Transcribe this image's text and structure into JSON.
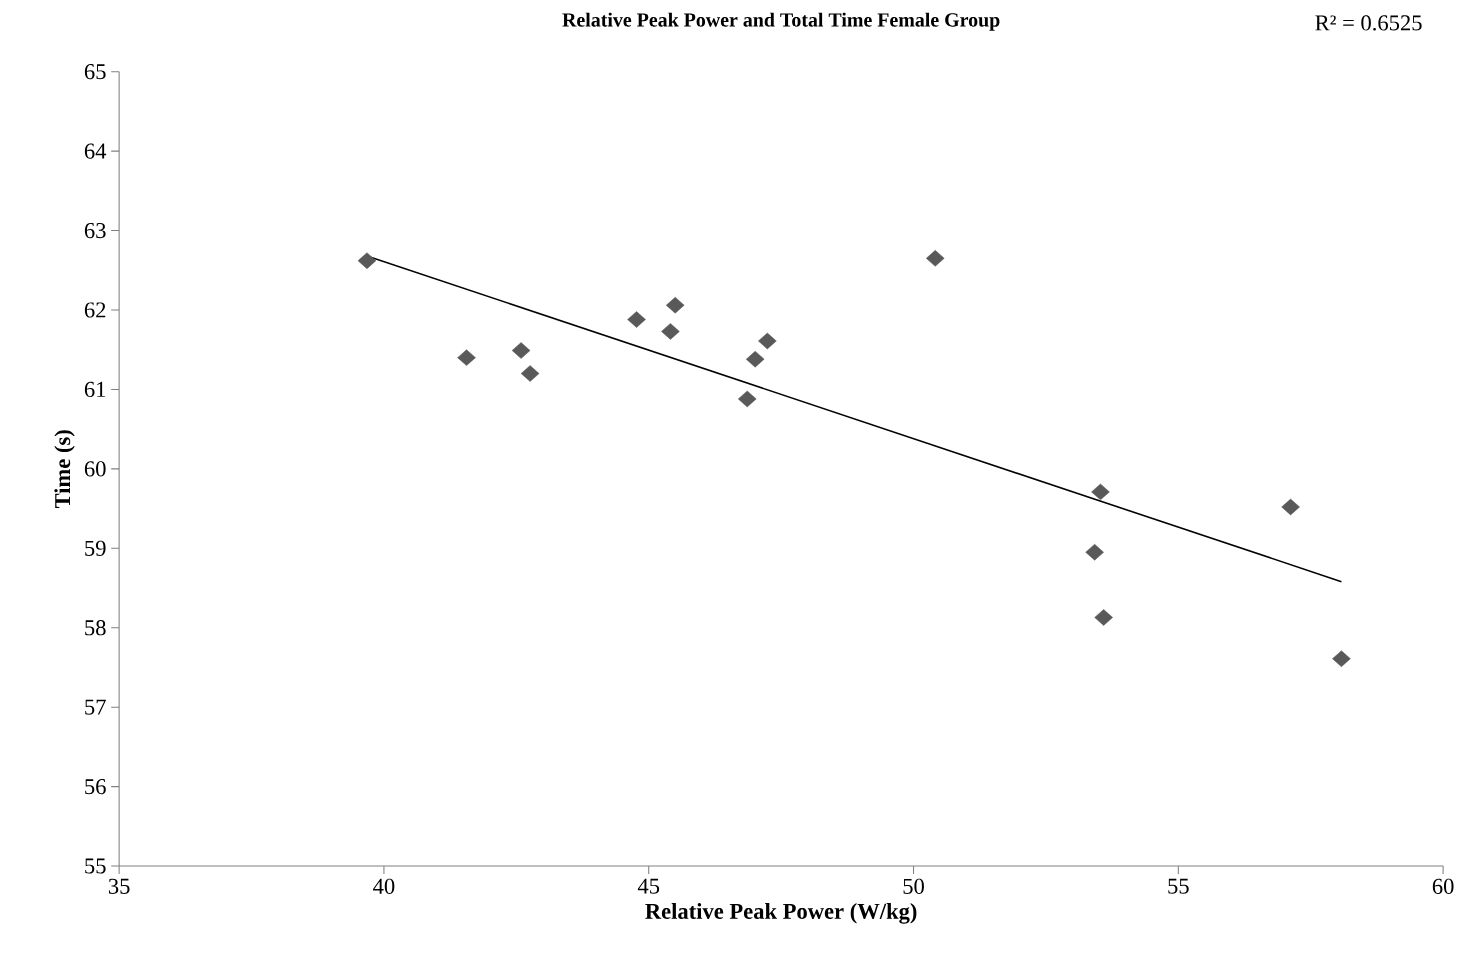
{
  "chart_data": {
    "type": "scatter",
    "title": "Relative Peak Power and Total Time Female Group",
    "xlabel": "Relative Peak Power (W/kg)",
    "ylabel": "Time (s)",
    "annotations": [
      "R² = 0.6525"
    ],
    "xlim": [
      35,
      60
    ],
    "xticks": [
      35,
      40,
      45,
      50,
      55,
      60
    ],
    "ylim": [
      55,
      65
    ],
    "yticks": [
      55,
      56,
      57,
      58,
      59,
      60,
      61,
      62,
      63,
      64,
      65
    ],
    "series": [
      {
        "marker": "diamond",
        "color": "#595959",
        "x": [
          39.68,
          41.56,
          42.59,
          42.76,
          44.77,
          45.5,
          45.41,
          47.01,
          47.24,
          46.86,
          50.41,
          53.53,
          53.42,
          53.59,
          57.12,
          58.08
        ],
        "values": [
          62.62,
          61.4,
          61.49,
          61.2,
          61.88,
          62.06,
          61.73,
          61.38,
          61.61,
          60.88,
          62.65,
          59.71,
          58.95,
          58.13,
          59.52,
          57.61
        ]
      },
      {
        "type": "line",
        "marker": "none",
        "color": "#000000",
        "x": [
          39.68,
          58.08
        ],
        "values": [
          62.68,
          58.58
        ]
      }
    ]
  }
}
